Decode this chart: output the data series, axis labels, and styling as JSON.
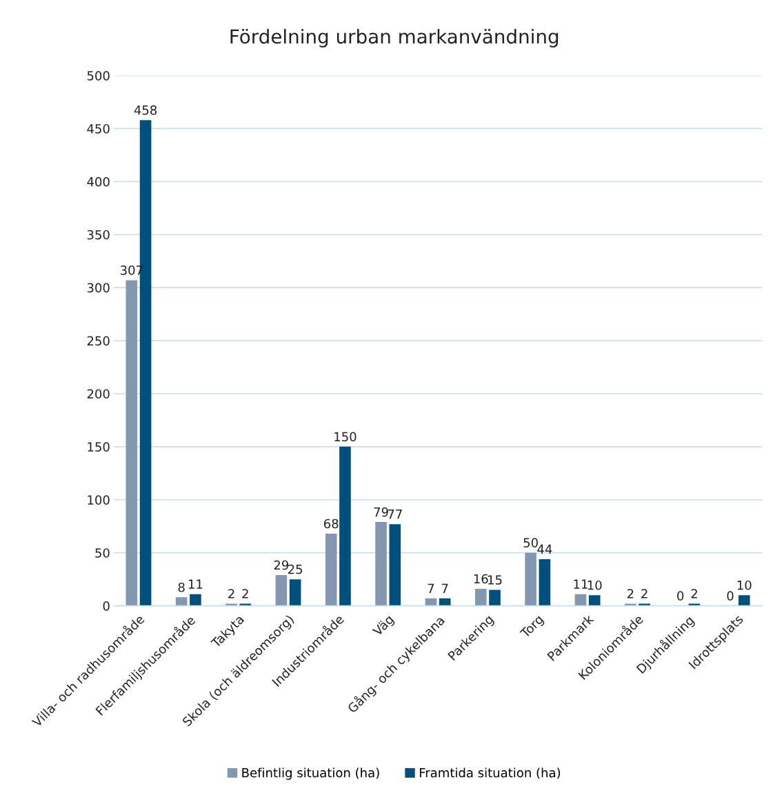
{
  "chart_data": {
    "type": "bar",
    "title": "Fördelning urban markanvändning",
    "categories": [
      "Villa- och radhusområde",
      "Flerfamiljshusområde",
      "Takyta",
      "Skola (och äldreomsorg)",
      "Industriområde",
      "Väg",
      "Gång- och cykelbana",
      "Parkering",
      "Torg",
      "Parkmark",
      "Koloniområde",
      "Djurhållning",
      "Idrottsplats"
    ],
    "series": [
      {
        "name": "Befintlig situation (ha)",
        "color": "#8497b0",
        "values": [
          307,
          8,
          2,
          29,
          68,
          79,
          7,
          16,
          50,
          11,
          2,
          0,
          0
        ]
      },
      {
        "name": "Framtida situation (ha)",
        "color": "#004f7c",
        "values": [
          458,
          11,
          2,
          25,
          150,
          77,
          7,
          15,
          44,
          10,
          2,
          2,
          10
        ]
      }
    ],
    "ylim": [
      0,
      500
    ],
    "yticks": [
      0,
      50,
      100,
      150,
      200,
      250,
      300,
      350,
      400,
      450,
      500
    ],
    "grid": "y",
    "legend": "bottom",
    "data_labels": true
  }
}
